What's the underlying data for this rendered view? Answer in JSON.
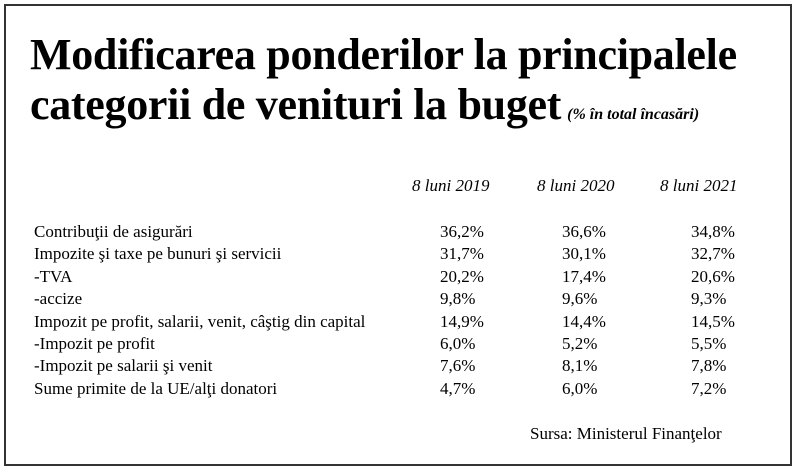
{
  "title": {
    "line1": "Modificarea ponderilor la principalele",
    "line2": "categorii de venituri la buget",
    "note": "(% în total încasări)"
  },
  "columns": [
    "8 luni 2019",
    "8 luni 2020",
    "8 luni 2021"
  ],
  "rows": [
    {
      "label": "Contribuţii de asigurări",
      "values": [
        "36,2%",
        "36,6%",
        "34,8%"
      ]
    },
    {
      "label": "Impozite  şi taxe pe bunuri şi servicii",
      "values": [
        "31,7%",
        "30,1%",
        "32,7%"
      ]
    },
    {
      "label": "-TVA",
      "values": [
        "20,2%",
        "17,4%",
        "20,6%"
      ]
    },
    {
      "label": "-accize",
      "values": [
        "9,8%",
        "9,6%",
        "9,3%"
      ]
    },
    {
      "label": "Impozit  pe profit, salarii, venit, câştig din capital",
      "values": [
        "14,9%",
        "14,4%",
        "14,5%"
      ]
    },
    {
      "label": "-Impozit  pe profit",
      "values": [
        "6,0%",
        "5,2%",
        "5,5%"
      ]
    },
    {
      "label": "-Impozit  pe salarii şi venit",
      "values": [
        "7,6%",
        "8,1%",
        "7,8%"
      ]
    },
    {
      "label": "Sume  primite de la UE/alţi donatori",
      "values": [
        "4,7%",
        "6,0%",
        "7,2%"
      ]
    }
  ],
  "source": "Sursa: Ministerul Finanţelor"
}
